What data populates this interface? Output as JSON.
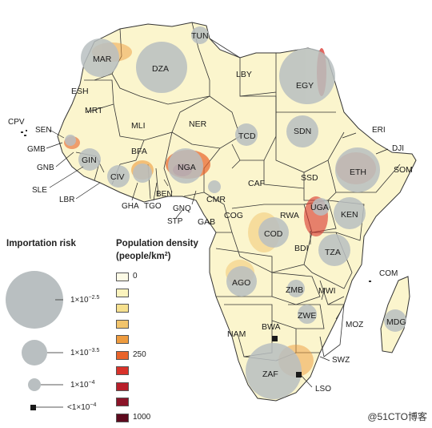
{
  "importation_risk": {
    "title": "Importation risk",
    "levels": [
      {
        "base": "1×10",
        "exp": "−2.5"
      },
      {
        "base": "1×10",
        "exp": "−3.5"
      },
      {
        "base": "1×10",
        "exp": "−4"
      },
      {
        "base": "<1×10",
        "exp": "−4"
      }
    ]
  },
  "population_density": {
    "title_line1": "Population density",
    "title_line2": "(people/km",
    "title_sup": "2",
    "title_close": ")",
    "scale": [
      {
        "label": "0",
        "color": "#fdfbe6"
      },
      {
        "label": "",
        "color": "#fbf3bd"
      },
      {
        "label": "",
        "color": "#f6e08e"
      },
      {
        "label": "",
        "color": "#f2c46b"
      },
      {
        "label": "",
        "color": "#ee9b3e"
      },
      {
        "label": "250",
        "color": "#e8632a"
      },
      {
        "label": "",
        "color": "#d9322a"
      },
      {
        "label": "",
        "color": "#b81e2a"
      },
      {
        "label": "",
        "color": "#8c1428"
      },
      {
        "label": "1000",
        "color": "#5e0a1e"
      }
    ]
  },
  "colors": {
    "land": "#fbf5cd",
    "border": "#333333",
    "risk_circle": "#b9bfc1",
    "marker": "#1a1a1a"
  },
  "countries": [
    "MAR",
    "DZA",
    "TUN",
    "LBY",
    "EGY",
    "ESH",
    "MRT",
    "MLI",
    "NER",
    "TCD",
    "SDN",
    "ERI",
    "DJI",
    "SOM",
    "ETH",
    "SSD",
    "CPV",
    "SEN",
    "GMB",
    "GNB",
    "GIN",
    "SLE",
    "LBR",
    "CIV",
    "GHA",
    "TGO",
    "BEN",
    "BFA",
    "NGA",
    "CMR",
    "GNQ",
    "STP",
    "GAB",
    "COG",
    "CAF",
    "COD",
    "UGA",
    "KEN",
    "RWA",
    "BDI",
    "TZA",
    "COM",
    "AGO",
    "ZMB",
    "MWI",
    "MOZ",
    "MDG",
    "ZWE",
    "NAM",
    "BWA",
    "SWZ",
    "ZAF",
    "LSO"
  ],
  "watermark": "@51CTO博客"
}
